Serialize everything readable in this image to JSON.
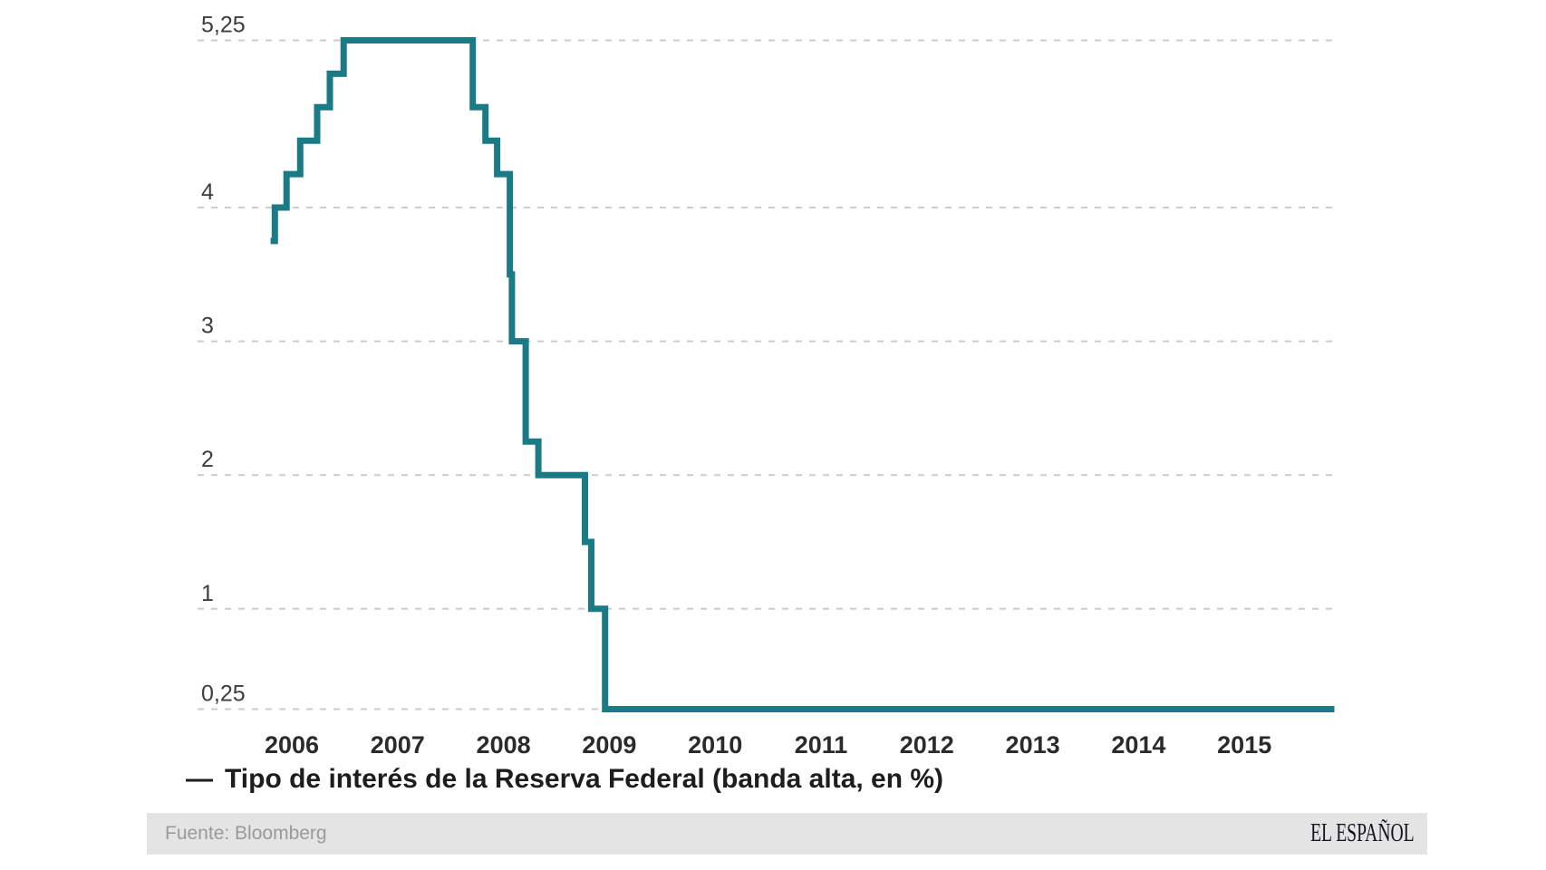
{
  "chart_data": {
    "type": "line",
    "step": true,
    "title": "",
    "xlabel": "",
    "ylabel": "",
    "grid": "horizontal-dashed",
    "legend_position": "bottom-left",
    "xlim": [
      2005.1,
      2015.87
    ],
    "ylim": [
      0.25,
      5.25
    ],
    "x_ticks": [
      2006,
      2007,
      2008,
      2009,
      2010,
      2011,
      2012,
      2013,
      2014,
      2015
    ],
    "y_ticks": [
      {
        "value": 5.25,
        "label": "5,25"
      },
      {
        "value": 4,
        "label": "4"
      },
      {
        "value": 3,
        "label": "3"
      },
      {
        "value": 2,
        "label": "2"
      },
      {
        "value": 1,
        "label": "1"
      },
      {
        "value": 0.25,
        "label": "0,25"
      }
    ],
    "series": [
      {
        "name": "Tipo de interés de la Reserva Federal (banda alta, en %)",
        "color": "#1a7a85",
        "points": [
          {
            "x": 2005.8,
            "y": 3.75
          },
          {
            "x": 2005.84,
            "y": 4.0
          },
          {
            "x": 2005.95,
            "y": 4.25
          },
          {
            "x": 2006.08,
            "y": 4.5
          },
          {
            "x": 2006.24,
            "y": 4.75
          },
          {
            "x": 2006.36,
            "y": 5.0
          },
          {
            "x": 2006.49,
            "y": 5.25
          },
          {
            "x": 2007.71,
            "y": 4.75
          },
          {
            "x": 2007.83,
            "y": 4.5
          },
          {
            "x": 2007.94,
            "y": 4.25
          },
          {
            "x": 2008.06,
            "y": 3.5
          },
          {
            "x": 2008.08,
            "y": 3.0
          },
          {
            "x": 2008.21,
            "y": 2.25
          },
          {
            "x": 2008.33,
            "y": 2.0
          },
          {
            "x": 2008.77,
            "y": 1.5
          },
          {
            "x": 2008.83,
            "y": 1.0
          },
          {
            "x": 2008.96,
            "y": 0.25
          },
          {
            "x": 2015.85,
            "y": 0.25
          }
        ]
      }
    ]
  },
  "legend": {
    "swatch": "—",
    "label": "Tipo de interés de la Reserva Federal (banda alta, en %)"
  },
  "footer": {
    "source": "Fuente: Bloomberg",
    "publisher": "EL ESPAÑOL"
  },
  "colors": {
    "line": "#1a7a85",
    "grid": "#cccccc",
    "y_tick_text": "#3d3d3d",
    "x_tick_text": "#2b2b2b",
    "legend_text": "#1d1d1d",
    "source_text": "#9a9a9a",
    "footer_bg": "#e4e4e4",
    "publisher_text": "#14141e",
    "background": "#ffffff"
  }
}
